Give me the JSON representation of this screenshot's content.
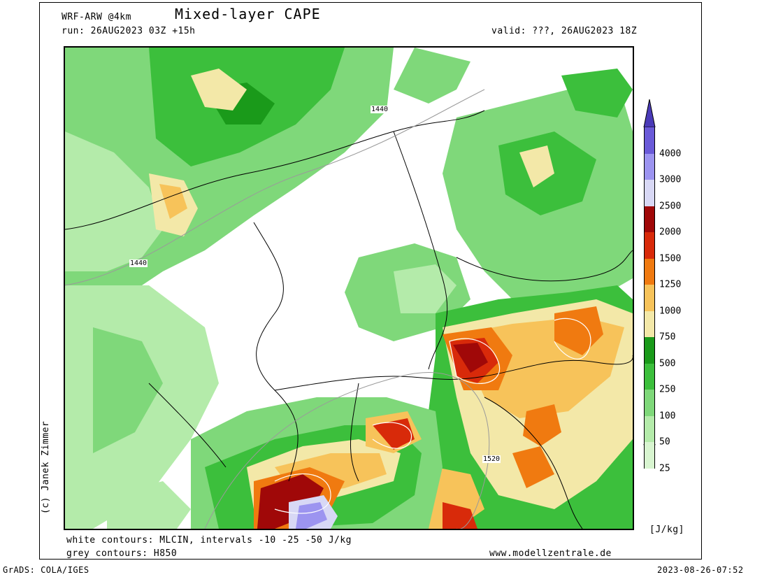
{
  "header": {
    "model": "WRF-ARW @4km",
    "title": "Mixed-layer CAPE",
    "run": "run: 26AUG2023 03Z +15h",
    "valid": "valid: ???, 26AUG2023 18Z"
  },
  "footer": {
    "white_contours": "white contours: MLCIN, intervals -10 -25 -50 J/kg",
    "grey_contours": "grey contours: H850",
    "website": "www.modellzentrale.de",
    "grads": "GrADS: COLA/IGES",
    "timestamp": "2023-08-26-07:52",
    "copyright": "(c) Janek Zimmer"
  },
  "colorbar": {
    "unit": "[J/kg]",
    "levels": [
      "25",
      "50",
      "100",
      "250",
      "500",
      "750",
      "1000",
      "1250",
      "1500",
      "2000",
      "2500",
      "3000",
      "4000"
    ],
    "colors": [
      "#d8f5d0",
      "#b4ebaa",
      "#7fd87a",
      "#3cbf3c",
      "#1a9a1a",
      "#f3e8a8",
      "#f7c35a",
      "#f07a10",
      "#d82a0a",
      "#a00808",
      "#d8d8f5",
      "#9c94f0",
      "#6a5ad8"
    ],
    "top_arrow_color": "#4a3ab8"
  },
  "map": {
    "contour_labels": [
      "1440",
      "1440",
      "1520"
    ]
  }
}
